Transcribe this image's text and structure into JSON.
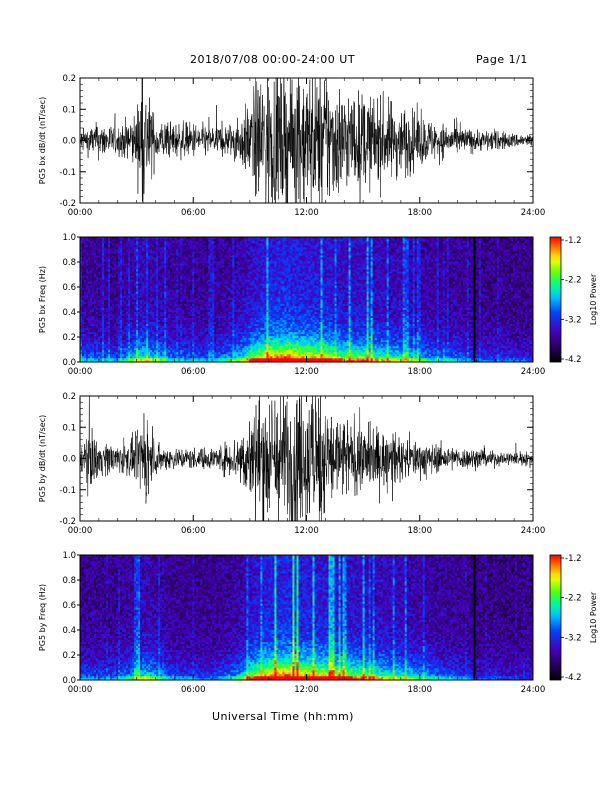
{
  "header": {
    "title": "2018/07/08  00:00-24:00 UT",
    "page": "Page 1/1"
  },
  "x_axis_title": "Universal Time (hh:mm)",
  "colors": {
    "trace": "#000000",
    "spectrogram_background": "#0a0014",
    "colorbar_stops": [
      "#000000",
      "#2a0060",
      "#4a00c0",
      "#0050ff",
      "#00d0ff",
      "#00ff80",
      "#80ff00",
      "#ffff00",
      "#ff8000",
      "#ff0000"
    ]
  },
  "chart_data": [
    {
      "type": "line",
      "ylabel": "PG5 bx dB/dt (nT/sec)",
      "x_ticks": [
        "00:00",
        "06:00",
        "12:00",
        "18:00",
        "24:00"
      ],
      "y_ticks": [
        "0.2",
        "0.1",
        "0.0",
        "-0.1",
        "-0.2"
      ],
      "xlim": [
        0,
        24
      ],
      "ylim": [
        -0.2,
        0.2
      ],
      "x_unit": "hours UT",
      "x": [
        0,
        1,
        2,
        3,
        3.3,
        4,
        5,
        6,
        7,
        8,
        8.5,
        9,
        9.5,
        10,
        10.5,
        11,
        11.5,
        12,
        12.5,
        13,
        13.5,
        14,
        14.5,
        15,
        15.5,
        16,
        16.5,
        17,
        17.5,
        18,
        19,
        20,
        21,
        22,
        23,
        24
      ],
      "amplitude": [
        0.03,
        0.05,
        0.04,
        0.08,
        0.2,
        0.06,
        0.05,
        0.05,
        0.04,
        0.05,
        0.07,
        0.11,
        0.2,
        0.2,
        0.2,
        0.2,
        0.2,
        0.2,
        0.2,
        0.2,
        0.17,
        0.15,
        0.13,
        0.14,
        0.12,
        0.12,
        0.11,
        0.1,
        0.09,
        0.07,
        0.05,
        0.04,
        0.03,
        0.03,
        0.02,
        0.02
      ],
      "spikes": [
        {
          "x": 3.3,
          "y": 0.2
        }
      ]
    },
    {
      "type": "heatmap",
      "ylabel": "PG5 bx Freq (Hz)",
      "x_ticks": [
        "00:00",
        "06:00",
        "12:00",
        "18:00",
        "24:00"
      ],
      "y_ticks": [
        "1.0",
        "0.8",
        "0.6",
        "0.4",
        "0.2",
        "0.0"
      ],
      "xlim": [
        0,
        24
      ],
      "ylim": [
        0,
        1
      ],
      "colorbar": {
        "label": "Log10 Power",
        "ticks": [
          "-1.2",
          "-2.2",
          "-3.2",
          "-4.2"
        ],
        "range": [
          -4.2,
          -1.2
        ]
      },
      "activity_x": [
        0,
        2,
        3.3,
        5,
        7,
        8.5,
        9,
        10,
        11,
        12,
        13,
        14,
        15,
        16,
        17,
        18,
        19,
        20,
        21,
        22,
        24
      ],
      "activity": [
        0.35,
        0.3,
        0.6,
        0.35,
        0.3,
        0.5,
        0.7,
        0.95,
        1.0,
        0.9,
        0.85,
        0.7,
        0.7,
        0.6,
        0.55,
        0.45,
        0.35,
        0.35,
        0.25,
        0.25,
        0.2
      ],
      "gap_lines_x": [
        20.9
      ]
    },
    {
      "type": "line",
      "ylabel": "PG5 by dB/dt (nT/sec)",
      "x_ticks": [
        "00:00",
        "06:00",
        "12:00",
        "18:00",
        "24:00"
      ],
      "y_ticks": [
        "0.2",
        "0.1",
        "0.0",
        "-0.1",
        "-0.2"
      ],
      "xlim": [
        0,
        24
      ],
      "ylim": [
        -0.2,
        0.2
      ],
      "x_unit": "hours UT",
      "x": [
        0,
        0.5,
        1,
        2,
        3,
        3.5,
        4,
        5,
        6,
        7,
        8,
        8.5,
        9,
        9.5,
        10,
        10.5,
        11,
        11.5,
        12,
        12.5,
        13,
        13.5,
        14,
        14.5,
        15,
        15.5,
        16,
        16.5,
        17,
        18,
        19,
        20,
        21,
        22,
        23,
        24
      ],
      "amplitude": [
        0.03,
        0.09,
        0.05,
        0.04,
        0.06,
        0.12,
        0.04,
        0.03,
        0.03,
        0.03,
        0.05,
        0.08,
        0.12,
        0.2,
        0.2,
        0.2,
        0.2,
        0.2,
        0.2,
        0.2,
        0.18,
        0.13,
        0.12,
        0.1,
        0.1,
        0.09,
        0.08,
        0.07,
        0.06,
        0.05,
        0.04,
        0.03,
        0.03,
        0.02,
        0.02,
        0.02
      ],
      "spikes": []
    },
    {
      "type": "heatmap",
      "ylabel": "PG5 by Freq (Hz)",
      "x_ticks": [
        "00:00",
        "06:00",
        "12:00",
        "18:00",
        "24:00"
      ],
      "y_ticks": [
        "1.0",
        "0.8",
        "0.6",
        "0.4",
        "0.2",
        "0.0"
      ],
      "xlim": [
        0,
        24
      ],
      "ylim": [
        0,
        1
      ],
      "colorbar": {
        "label": "Log10 Power",
        "ticks": [
          "-1.2",
          "-2.2",
          "-3.2",
          "-4.2"
        ],
        "range": [
          -4.2,
          -1.2
        ]
      },
      "activity_x": [
        0,
        2,
        3.5,
        5,
        7,
        8.5,
        9,
        10,
        11,
        12,
        13,
        14,
        15,
        16,
        17,
        18,
        19,
        20,
        21,
        22,
        24
      ],
      "activity": [
        0.3,
        0.3,
        0.55,
        0.3,
        0.25,
        0.45,
        0.7,
        0.95,
        1.0,
        0.9,
        0.85,
        0.75,
        0.7,
        0.6,
        0.55,
        0.45,
        0.35,
        0.3,
        0.2,
        0.2,
        0.15
      ],
      "gap_lines_x": [
        20.9
      ]
    }
  ]
}
